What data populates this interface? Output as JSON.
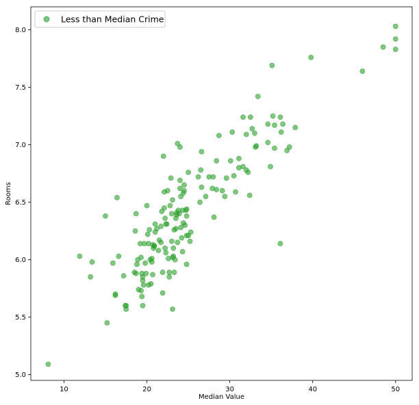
{
  "chart_data": {
    "type": "scatter",
    "xlabel": "Median Value",
    "ylabel": "Rooms",
    "xlim": [
      6,
      52
    ],
    "ylim": [
      4.95,
      8.2
    ],
    "xticks": [
      10,
      20,
      30,
      40,
      50
    ],
    "yticks": [
      5.0,
      5.5,
      6.0,
      6.5,
      7.0,
      7.5,
      8.0
    ],
    "grid": false,
    "legend_position": "top-left",
    "series": [
      {
        "name": "Less than Median Crime",
        "color": "#2ca02c",
        "points": [
          [
            8.1,
            5.09
          ],
          [
            11.9,
            6.03
          ],
          [
            13.2,
            5.85
          ],
          [
            13.4,
            5.98
          ],
          [
            15.0,
            6.38
          ],
          [
            15.2,
            5.45
          ],
          [
            15.9,
            5.97
          ],
          [
            16.2,
            5.7
          ],
          [
            16.2,
            5.69
          ],
          [
            16.4,
            6.54
          ],
          [
            16.6,
            6.03
          ],
          [
            17.2,
            5.86
          ],
          [
            17.4,
            5.6
          ],
          [
            17.5,
            5.57
          ],
          [
            17.5,
            5.6
          ],
          [
            18.5,
            5.89
          ],
          [
            18.6,
            6.25
          ],
          [
            18.7,
            5.88
          ],
          [
            18.7,
            6.4
          ],
          [
            18.8,
            5.96
          ],
          [
            18.9,
            6.0
          ],
          [
            19.0,
            5.74
          ],
          [
            19.2,
            6.14
          ],
          [
            19.3,
            5.73
          ],
          [
            19.3,
            6.02
          ],
          [
            19.4,
            5.88
          ],
          [
            19.4,
            5.68
          ],
          [
            19.5,
            5.6
          ],
          [
            19.5,
            5.85
          ],
          [
            19.5,
            5.82
          ],
          [
            19.6,
            5.78
          ],
          [
            19.7,
            6.14
          ],
          [
            19.8,
            5.97
          ],
          [
            19.9,
            5.88
          ],
          [
            20.0,
            6.47
          ],
          [
            20.1,
            6.22
          ],
          [
            20.2,
            5.78
          ],
          [
            20.2,
            6.14
          ],
          [
            20.3,
            6.26
          ],
          [
            20.4,
            6.0
          ],
          [
            20.5,
            5.79
          ],
          [
            20.6,
            5.98
          ],
          [
            20.6,
            6.01
          ],
          [
            20.7,
            6.13
          ],
          [
            20.7,
            5.87
          ],
          [
            20.8,
            6.1
          ],
          [
            20.9,
            6.12
          ],
          [
            20.9,
            6.12
          ],
          [
            21.0,
            6.24
          ],
          [
            21.0,
            6.31
          ],
          [
            21.2,
            6.27
          ],
          [
            21.4,
            6.08
          ],
          [
            21.5,
            6.17
          ],
          [
            21.7,
            6.15
          ],
          [
            21.7,
            6.29
          ],
          [
            21.8,
            6.42
          ],
          [
            21.9,
            5.71
          ],
          [
            21.9,
            5.89
          ],
          [
            22.0,
            6.9
          ],
          [
            22.1,
            6.59
          ],
          [
            22.1,
            6.45
          ],
          [
            22.2,
            6.1
          ],
          [
            22.2,
            6.36
          ],
          [
            22.3,
            6.31
          ],
          [
            22.3,
            6.06
          ],
          [
            22.4,
            6.31
          ],
          [
            22.5,
            6.6
          ],
          [
            22.6,
            6.01
          ],
          [
            22.7,
            5.85
          ],
          [
            22.7,
            5.89
          ],
          [
            22.8,
            6.47
          ],
          [
            22.9,
            6.71
          ],
          [
            23.0,
            6.16
          ],
          [
            23.0,
            6.4
          ],
          [
            23.1,
            6.02
          ],
          [
            23.1,
            6.52
          ],
          [
            23.1,
            5.57
          ],
          [
            23.2,
            6.1
          ],
          [
            23.2,
            6.03
          ],
          [
            23.3,
            5.89
          ],
          [
            23.3,
            6.26
          ],
          [
            23.4,
            6.0
          ],
          [
            23.5,
            6.36
          ],
          [
            23.5,
            6.27
          ],
          [
            23.6,
            6.41
          ],
          [
            23.6,
            6.39
          ],
          [
            23.7,
            6.15
          ],
          [
            23.7,
            7.01
          ],
          [
            23.8,
            6.43
          ],
          [
            23.9,
            6.4
          ],
          [
            24.0,
            6.69
          ],
          [
            24.0,
            6.98
          ],
          [
            24.0,
            6.62
          ],
          [
            24.1,
            6.28
          ],
          [
            24.1,
            6.55
          ],
          [
            24.2,
            6.19
          ],
          [
            24.3,
            6.43
          ],
          [
            24.3,
            6.07
          ],
          [
            24.4,
            6.32
          ],
          [
            24.4,
            6.58
          ],
          [
            24.5,
            6.6
          ],
          [
            24.5,
            6.65
          ],
          [
            24.6,
            6.3
          ],
          [
            24.7,
            6.43
          ],
          [
            24.8,
            6.21
          ],
          [
            24.8,
            6.44
          ],
          [
            24.8,
            6.38
          ],
          [
            24.8,
            5.96
          ],
          [
            25.0,
            6.76
          ],
          [
            25.0,
            6.21
          ],
          [
            25.2,
            6.16
          ],
          [
            25.3,
            6.24
          ],
          [
            26.2,
            6.72
          ],
          [
            26.4,
            6.5
          ],
          [
            26.5,
            6.78
          ],
          [
            26.6,
            6.94
          ],
          [
            26.6,
            6.63
          ],
          [
            27.1,
            6.55
          ],
          [
            27.5,
            6.72
          ],
          [
            27.9,
            6.62
          ],
          [
            28.0,
            6.72
          ],
          [
            28.1,
            6.37
          ],
          [
            28.4,
            6.86
          ],
          [
            28.4,
            6.61
          ],
          [
            28.7,
            7.08
          ],
          [
            29.1,
            6.6
          ],
          [
            29.4,
            6.55
          ],
          [
            29.6,
            6.71
          ],
          [
            30.1,
            6.86
          ],
          [
            30.3,
            7.11
          ],
          [
            30.5,
            6.73
          ],
          [
            30.7,
            6.59
          ],
          [
            31.1,
            6.88
          ],
          [
            31.1,
            6.8
          ],
          [
            31.6,
            6.81
          ],
          [
            31.6,
            7.24
          ],
          [
            32.0,
            6.78
          ],
          [
            32.0,
            7.09
          ],
          [
            32.2,
            6.76
          ],
          [
            32.4,
            6.56
          ],
          [
            32.5,
            7.24
          ],
          [
            32.7,
            7.14
          ],
          [
            33.0,
            7.1
          ],
          [
            33.1,
            6.98
          ],
          [
            33.2,
            6.99
          ],
          [
            33.4,
            7.42
          ],
          [
            34.6,
            7.02
          ],
          [
            34.6,
            7.18
          ],
          [
            34.9,
            6.81
          ],
          [
            35.1,
            7.69
          ],
          [
            35.2,
            7.25
          ],
          [
            35.4,
            6.97
          ],
          [
            35.4,
            7.17
          ],
          [
            36.1,
            6.14
          ],
          [
            36.1,
            7.24
          ],
          [
            36.2,
            7.11
          ],
          [
            36.4,
            7.18
          ],
          [
            36.9,
            6.95
          ],
          [
            37.2,
            6.98
          ],
          [
            37.9,
            7.15
          ],
          [
            39.8,
            7.76
          ],
          [
            46.0,
            7.64
          ],
          [
            48.5,
            7.85
          ],
          [
            50.0,
            8.03
          ],
          [
            50.0,
            7.92
          ],
          [
            50.0,
            7.83
          ]
        ]
      }
    ]
  }
}
